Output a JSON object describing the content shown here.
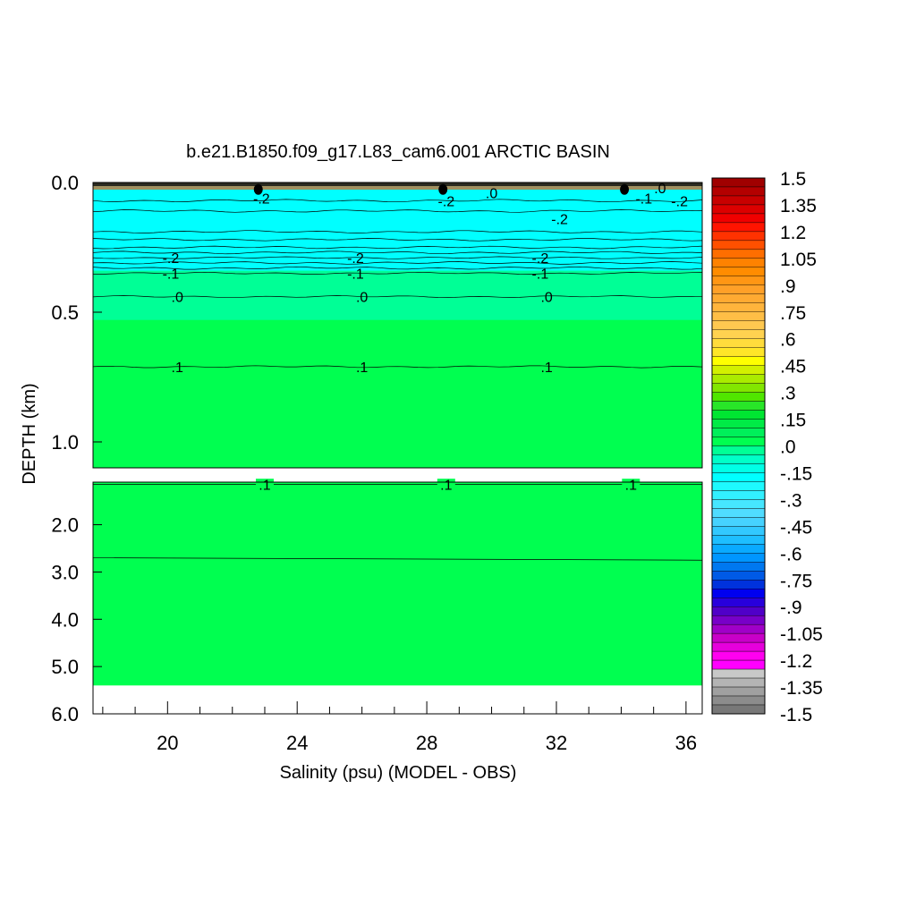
{
  "chart_data": {
    "type": "heatmap",
    "title": "b.e21.B1850.f09_g17.L83_cam6.001 ARCTIC BASIN",
    "xlabel": "Salinity (psu) (MODEL - OBS)",
    "ylabel": "DEPTH (km)",
    "xlim": [
      17.7,
      36.5
    ],
    "x_ticks": [
      "20",
      "24",
      "28",
      "32",
      "36"
    ],
    "x_tick_values": [
      20,
      24,
      28,
      32,
      36
    ],
    "y_upper_panel": {
      "range": [
        0.0,
        1.1
      ],
      "ticks": [
        "0.0",
        "0.5",
        "1.0"
      ],
      "tick_values": [
        0.0,
        0.5,
        1.0
      ]
    },
    "y_lower_panel": {
      "range": [
        1.1,
        6.0
      ],
      "ticks": [
        "2.0",
        "3.0",
        "4.0",
        "5.0",
        "6.0"
      ],
      "tick_values": [
        2.0,
        3.0,
        4.0,
        5.0,
        6.0
      ]
    },
    "ocean_bottom_depth": 5.4,
    "contour_lines_upper": [
      {
        "level": -0.2,
        "depth": 0.29,
        "labels": [
          {
            "x": 20.1,
            "text": "-.2"
          },
          {
            "x": 25.8,
            "text": "-.2"
          },
          {
            "x": 31.5,
            "text": "-.2"
          }
        ]
      },
      {
        "level": -0.1,
        "depth": 0.35,
        "labels": [
          {
            "x": 20.1,
            "text": "-.1"
          },
          {
            "x": 25.8,
            "text": "-.1"
          },
          {
            "x": 31.5,
            "text": "-.1"
          }
        ]
      },
      {
        "level": 0.0,
        "depth": 0.44,
        "labels": [
          {
            "x": 20.3,
            "text": ".0"
          },
          {
            "x": 26.0,
            "text": ".0"
          },
          {
            "x": 31.7,
            "text": ".0"
          }
        ]
      },
      {
        "level": 0.1,
        "depth": 0.71,
        "labels": [
          {
            "x": 20.3,
            "text": ".1"
          },
          {
            "x": 26.0,
            "text": ".1"
          },
          {
            "x": 31.7,
            "text": ".1"
          }
        ]
      }
    ],
    "contour_lines_lower": [
      {
        "level": 0.1,
        "depth": 1.15,
        "labels": [
          {
            "x": 23.0,
            "text": ".1"
          },
          {
            "x": 28.6,
            "text": ".1"
          },
          {
            "x": 34.3,
            "text": ".1"
          }
        ]
      }
    ],
    "near_surface_labels": [
      {
        "x": 22.9,
        "depth": 0.06,
        "text": "-.2"
      },
      {
        "x": 28.6,
        "depth": 0.07,
        "text": "-.2"
      },
      {
        "x": 30.0,
        "depth": 0.04,
        "text": ".0"
      },
      {
        "x": 32.1,
        "depth": 0.14,
        "text": "-.2"
      },
      {
        "x": 34.7,
        "depth": 0.06,
        "text": "-.1"
      },
      {
        "x": 35.8,
        "depth": 0.07,
        "text": "-.2"
      },
      {
        "x": 35.2,
        "depth": 0.02,
        "text": ".0"
      }
    ],
    "colorbar": {
      "labels": [
        "1.5",
        "1.35",
        "1.2",
        "1.05",
        ".9",
        ".75",
        ".6",
        ".45",
        ".3",
        ".15",
        ".0",
        "-.15",
        "-.3",
        "-.45",
        "-.6",
        "-.75",
        "-.9",
        "-1.05",
        "-1.2",
        "-1.35",
        "-1.5"
      ],
      "colors": [
        "#a00000",
        "#b40000",
        "#c80000",
        "#dc0000",
        "#f00000",
        "#ff1400",
        "#ff3200",
        "#ff5000",
        "#ff6e00",
        "#ff8200",
        "#ff8c00",
        "#ff9614",
        "#ffa028",
        "#ffaa32",
        "#ffb43c",
        "#ffbe46",
        "#ffc850",
        "#ffd250",
        "#ffdc3c",
        "#ffe628",
        "#ffff00",
        "#d2f000",
        "#aaeb00",
        "#82e600",
        "#50e600",
        "#28e628",
        "#00e632",
        "#00eb46",
        "#00f05a",
        "#00ff50",
        "#00ff96",
        "#00ffc8",
        "#00ffe6",
        "#00ffff",
        "#1efaff",
        "#32f0ff",
        "#46e6ff",
        "#50dcff",
        "#46d2ff",
        "#32c8ff",
        "#1ebeff",
        "#0aaaff",
        "#0096ff",
        "#0078f0",
        "#005ae6",
        "#0032dc",
        "#0000f0",
        "#2800dc",
        "#5000c8",
        "#7800c8",
        "#a000c8",
        "#c800c8",
        "#e600dc",
        "#ff00f0",
        "#ff00ff",
        "#c8c8c8",
        "#b4b4b4",
        "#a0a0a0",
        "#8c8c8c",
        "#787878"
      ]
    },
    "fill_colors": {
      "surface_dark": "#2a2a20",
      "surface_tan": "#a09060",
      "cyan": "#00ffff",
      "light_green": "#00ff96",
      "green": "#00ff50",
      "contour": "#000000"
    }
  }
}
